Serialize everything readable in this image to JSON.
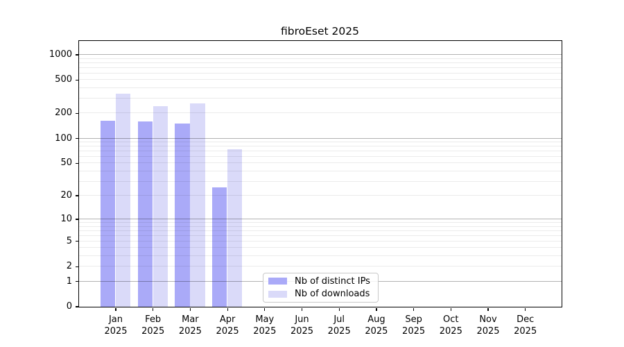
{
  "title": "fibroEset 2025",
  "colors": {
    "bar_distinct_ips": "#aaaaf8",
    "bar_downloads": "#dadaf9",
    "grid_major": "rgba(0,0,0,0.30)",
    "grid_minor": "rgba(0,0,0,0.08)",
    "axis": "#000000",
    "legend_border": "#c9c9c9",
    "background": "#ffffff"
  },
  "legend": {
    "items": [
      {
        "label": "Nb of distinct IPs",
        "color": "#aaaaf8"
      },
      {
        "label": "Nb of downloads",
        "color": "#dadaf9"
      }
    ]
  },
  "chart_data": {
    "type": "bar",
    "title": "fibroEset 2025",
    "categories": [
      "Jan",
      "Feb",
      "Mar",
      "Apr",
      "May",
      "Jun",
      "Jul",
      "Aug",
      "Sep",
      "Oct",
      "Nov",
      "Dec"
    ],
    "x_year": "2025",
    "series": [
      {
        "name": "Nb of distinct IPs",
        "values": [
          162,
          158,
          150,
          25,
          0,
          0,
          0,
          0,
          0,
          0,
          0,
          0
        ]
      },
      {
        "name": "Nb of downloads",
        "values": [
          343,
          242,
          260,
          73,
          0,
          0,
          0,
          0,
          0,
          0,
          0,
          0
        ]
      }
    ],
    "y_scale": "log10(1+value)",
    "ylim": [
      0,
      1450
    ],
    "y_ticks": [
      {
        "value": 0,
        "label": "0"
      },
      {
        "value": 1,
        "label": "1"
      },
      {
        "value": 2,
        "label": "2"
      },
      {
        "value": 5,
        "label": "5"
      },
      {
        "value": 10,
        "label": "10"
      },
      {
        "value": 20,
        "label": "20"
      },
      {
        "value": 50,
        "label": "50"
      },
      {
        "value": 100,
        "label": "100"
      },
      {
        "value": 200,
        "label": "200"
      },
      {
        "value": 500,
        "label": "500"
      },
      {
        "value": 1000,
        "label": "1000"
      }
    ],
    "grid": "horizontal major+minor",
    "legend_position": "lower center"
  }
}
